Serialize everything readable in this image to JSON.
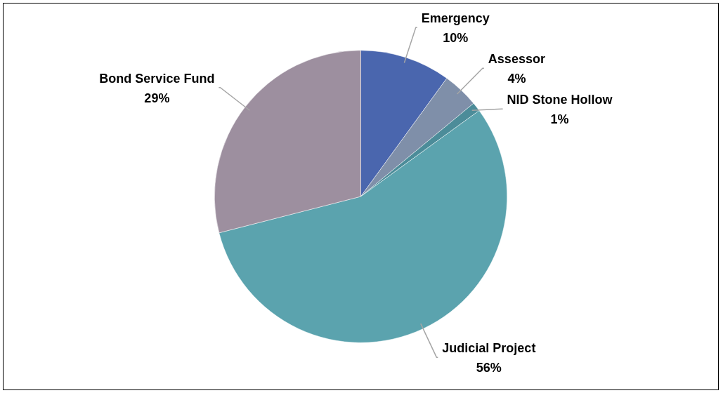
{
  "chart_data": {
    "type": "pie",
    "categories": [
      "Emergency",
      "Assessor",
      "NID Stone Hollow",
      "Judicial Project",
      "Bond Service Fund"
    ],
    "values": [
      10,
      4,
      1,
      56,
      29
    ],
    "colors": [
      "#4a66ae",
      "#7f8fa9",
      "#4c8c99",
      "#5ba3ae",
      "#9d8f9f"
    ],
    "value_labels": [
      "10%",
      "4%",
      "1%",
      "56%",
      "29%"
    ],
    "legend": false
  }
}
